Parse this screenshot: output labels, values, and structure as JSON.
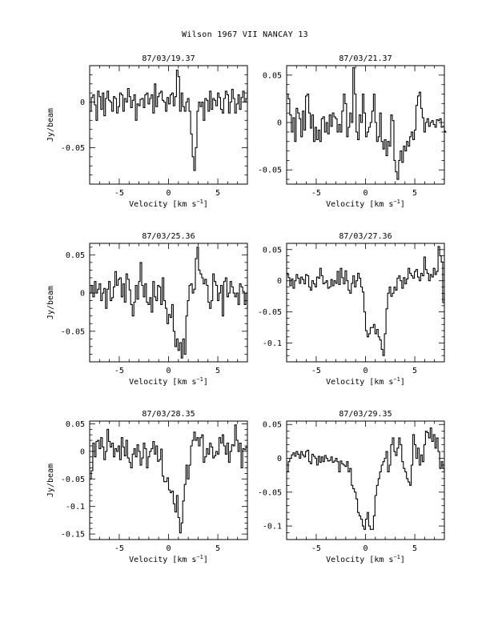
{
  "page": {
    "title": "Wilson 1967 VII    NANCAY     13"
  },
  "chart_data": [
    {
      "type": "line",
      "step": true,
      "title": "87/03/19.37",
      "xlabel": "Velocity [km s-1]",
      "ylabel": "Jy/beam",
      "xlim": [
        -8,
        8
      ],
      "ylim": [
        -0.09,
        0.04
      ],
      "xticks": [
        -5,
        0,
        5
      ],
      "yticks": [
        0,
        -0.05
      ],
      "x_start": -8,
      "x_step": 0.16,
      "values": [
        -0.01,
        0.005,
        0.008,
        -0.003,
        -0.02,
        0.012,
        0.006,
        -0.008,
        0.01,
        -0.015,
        0.004,
        0.012,
        0.002,
        0.0,
        -0.01,
        0.006,
        0.004,
        -0.012,
        -0.005,
        0.01,
        0.008,
        -0.01,
        0.004,
        0.0,
        0.015,
        0.006,
        -0.006,
        0.002,
        0.008,
        -0.02,
        -0.002,
        -0.004,
        0.003,
        0.004,
        -0.006,
        0.008,
        0.01,
        -0.002,
        0.004,
        0.008,
        -0.012,
        0.02,
        -0.005,
        0.006,
        0.01,
        0.012,
        0.002,
        0.0,
        -0.01,
        0.005,
        -0.002,
        0.008,
        0.01,
        -0.004,
        0.006,
        0.035,
        0.028,
        -0.01,
        0.01,
        -0.005,
        -0.01,
        0.0,
        0.004,
        -0.01,
        -0.035,
        -0.06,
        -0.075,
        -0.05,
        -0.01,
        0.0,
        -0.005,
        0.0,
        -0.02,
        0.004,
        0.002,
        -0.01,
        0.012,
        -0.008,
        0.004,
        0.002,
        -0.004,
        0.01,
        0.005,
        -0.008,
        -0.012,
        0.004,
        0.012,
        0.008,
        -0.012,
        0.0,
        0.014,
        0.004,
        -0.012,
        -0.002,
        0.008,
        -0.008,
        0.005,
        0.012,
        0.0,
        0.004,
        0.015
      ]
    },
    {
      "type": "line",
      "step": true,
      "title": "87/03/21.37",
      "xlabel": "Velocity [km s-1]",
      "ylabel": "",
      "xlim": [
        -8,
        8
      ],
      "ylim": [
        -0.065,
        0.06
      ],
      "xticks": [
        -5,
        0,
        5
      ],
      "yticks": [
        0.05,
        0,
        -0.05
      ],
      "x_start": -8,
      "x_step": 0.16,
      "values": [
        0.03,
        0.025,
        0.008,
        -0.01,
        0.005,
        -0.02,
        0.015,
        0.01,
        0.004,
        -0.015,
        0.012,
        -0.008,
        0.028,
        0.03,
        0.01,
        -0.006,
        0.008,
        -0.02,
        -0.005,
        -0.018,
        -0.008,
        -0.02,
        0.004,
        0.006,
        -0.01,
        0.0,
        -0.012,
        0.008,
        -0.004,
        0.01,
        0.006,
        0.004,
        -0.01,
        -0.002,
        -0.01,
        0.012,
        0.03,
        0.02,
        -0.015,
        -0.005,
        0.01,
        0.0,
        0.058,
        0.03,
        -0.01,
        -0.018,
        0.008,
        0.0,
        0.03,
        0.01,
        -0.015,
        -0.01,
        -0.005,
        0.0,
        0.012,
        0.03,
        0.0,
        -0.02,
        -0.015,
        0.01,
        -0.02,
        -0.028,
        -0.018,
        -0.035,
        -0.02,
        -0.025,
        0.008,
        0.002,
        -0.04,
        -0.052,
        -0.06,
        -0.04,
        -0.03,
        -0.042,
        -0.025,
        -0.03,
        -0.02,
        -0.025,
        -0.015,
        -0.01,
        -0.018,
        -0.008,
        0.018,
        0.028,
        0.032,
        0.015,
        0.005,
        -0.01,
        0.0,
        0.004,
        -0.004,
        0.0,
        0.002,
        -0.002,
        -0.005,
        0.003,
        0.002,
        0.004,
        -0.005,
        -0.004,
        -0.008,
        -0.01
      ]
    },
    {
      "type": "line",
      "step": true,
      "title": "87/03/25.36",
      "xlabel": "Velocity [km s-1]",
      "ylabel": "Jy/beam",
      "xlim": [
        -8,
        8
      ],
      "ylim": [
        -0.09,
        0.065
      ],
      "xticks": [
        -5,
        0,
        5
      ],
      "yticks": [
        0.05,
        0,
        -0.05
      ],
      "x_start": -8,
      "x_step": 0.16,
      "values": [
        0.0,
        0.01,
        -0.005,
        0.015,
        0.0,
        0.005,
        0.012,
        -0.01,
        0.0,
        0.006,
        -0.02,
        0.005,
        0.015,
        -0.01,
        -0.006,
        0.008,
        0.028,
        0.01,
        0.018,
        0.02,
        -0.005,
        0.012,
        -0.012,
        0.025,
        0.018,
        0.004,
        -0.015,
        -0.03,
        -0.012,
        0.01,
        -0.008,
        0.015,
        0.04,
        0.01,
        -0.005,
        0.012,
        -0.012,
        -0.015,
        -0.006,
        -0.025,
        0.015,
        -0.005,
        -0.01,
        0.01,
        0.008,
        -0.015,
        0.02,
        -0.01,
        -0.02,
        -0.04,
        -0.028,
        -0.032,
        -0.015,
        -0.05,
        -0.07,
        -0.06,
        -0.075,
        -0.065,
        -0.085,
        -0.06,
        -0.08,
        -0.03,
        -0.01,
        0.01,
        0.012,
        0.0,
        0.005,
        0.045,
        0.06,
        0.03,
        0.025,
        0.02,
        0.012,
        0.018,
        0.01,
        -0.012,
        -0.02,
        -0.01,
        0.025,
        0.015,
        0.01,
        -0.01,
        0.0,
        0.01,
        -0.03,
        0.015,
        0.02,
        -0.005,
        0.0,
        0.015,
        0.008,
        0.0,
        -0.005,
        0.0,
        -0.015,
        0.012,
        0.008,
        0.002,
        -0.015,
        0.0,
        -0.02
      ]
    },
    {
      "type": "line",
      "step": true,
      "title": "87/03/27.36",
      "xlabel": "Velocity [km s-1]",
      "ylabel": "",
      "xlim": [
        -8,
        8
      ],
      "ylim": [
        -0.13,
        0.06
      ],
      "xticks": [
        -5,
        0,
        5
      ],
      "yticks": [
        0.05,
        0,
        -0.05,
        -0.1
      ],
      "x_start": -8,
      "x_step": 0.16,
      "values": [
        0.012,
        0.005,
        -0.008,
        0.003,
        -0.012,
        0.0,
        0.01,
        0.004,
        -0.004,
        0.006,
        0.002,
        -0.005,
        0.01,
        0.008,
        -0.01,
        -0.015,
        0.0,
        -0.005,
        -0.01,
        0.006,
        0.004,
        0.02,
        0.008,
        -0.005,
        -0.003,
        0.0,
        -0.012,
        -0.01,
        0.002,
        -0.008,
        0.0,
        -0.004,
        0.015,
        -0.006,
        0.02,
        0.005,
        -0.005,
        0.016,
        0.0,
        -0.015,
        -0.02,
        -0.004,
        0.008,
        -0.01,
        0.0,
        0.012,
        0.004,
        -0.01,
        -0.018,
        -0.05,
        -0.08,
        -0.09,
        -0.085,
        -0.075,
        -0.075,
        -0.07,
        -0.085,
        -0.078,
        -0.09,
        -0.095,
        -0.11,
        -0.12,
        -0.085,
        -0.045,
        -0.02,
        -0.01,
        -0.025,
        -0.02,
        -0.01,
        -0.015,
        0.004,
        0.008,
        0.0,
        -0.012,
        0.005,
        -0.005,
        0.003,
        0.02,
        0.012,
        0.008,
        0.004,
        0.015,
        0.018,
        0.006,
        0.0,
        0.012,
        0.008,
        0.038,
        0.018,
        0.012,
        0.0,
        0.01,
        0.006,
        0.02,
        0.01,
        0.015,
        0.055,
        0.04,
        0.03,
        -0.035,
        -0.02
      ]
    },
    {
      "type": "line",
      "step": true,
      "title": "87/03/28.35",
      "xlabel": "Velocity [km s-1]",
      "ylabel": "Jy/beam",
      "xlim": [
        -8,
        8
      ],
      "ylim": [
        -0.16,
        0.055
      ],
      "xticks": [
        -5,
        0,
        5
      ],
      "yticks": [
        0.05,
        0,
        -0.05,
        -0.1,
        -0.15
      ],
      "x_start": -8,
      "x_step": 0.16,
      "values": [
        -0.05,
        -0.035,
        0.015,
        -0.01,
        0.018,
        0.02,
        0.005,
        0.025,
        0.008,
        -0.015,
        0.0,
        0.04,
        0.018,
        0.008,
        0.015,
        -0.01,
        0.005,
        0.0,
        0.01,
        -0.015,
        0.025,
        0.008,
        -0.008,
        0.02,
        -0.012,
        -0.02,
        -0.03,
        -0.005,
        0.005,
        -0.01,
        0.012,
        0.0,
        -0.025,
        -0.012,
        0.015,
        0.005,
        -0.03,
        -0.01,
        0.0,
        0.005,
        0.018,
        -0.005,
        0.01,
        -0.018,
        -0.015,
        0.004,
        -0.045,
        -0.055,
        -0.055,
        -0.048,
        -0.07,
        -0.075,
        -0.072,
        -0.095,
        -0.11,
        -0.08,
        -0.12,
        -0.148,
        -0.13,
        -0.09,
        -0.06,
        -0.025,
        -0.05,
        -0.025,
        0.01,
        0.02,
        0.035,
        0.02,
        0.025,
        0.01,
        0.025,
        0.03,
        -0.02,
        -0.01,
        0.005,
        -0.005,
        0.015,
        0.008,
        -0.012,
        -0.008,
        0.0,
        -0.005,
        0.025,
        0.015,
        0.03,
        0.01,
        -0.005,
        0.015,
        -0.02,
        0.0,
        0.012,
        0.01,
        0.048,
        0.02,
        0.0,
        0.015,
        -0.03,
        0.005,
        0.003,
        0.008,
        0.0
      ]
    },
    {
      "type": "line",
      "step": true,
      "title": "87/03/29.35",
      "xlabel": "Velocity [km s-1]",
      "ylabel": "",
      "xlim": [
        -8,
        8
      ],
      "ylim": [
        -0.12,
        0.055
      ],
      "xticks": [
        -5,
        0,
        5
      ],
      "yticks": [
        0.05,
        0,
        -0.05,
        -0.1
      ],
      "x_start": -8,
      "x_step": 0.16,
      "values": [
        -0.02,
        -0.005,
        0.0,
        0.005,
        0.008,
        0.003,
        0.01,
        0.006,
        0.0,
        0.01,
        0.005,
        0.002,
        0.01,
        0.012,
        -0.005,
        -0.008,
        0.006,
        0.003,
        0.0,
        -0.01,
        0.003,
        -0.006,
        0.002,
        -0.005,
        0.004,
        0.0,
        -0.004,
        -0.003,
        0.002,
        -0.006,
        -0.004,
        0.0,
        -0.005,
        -0.02,
        -0.004,
        -0.008,
        -0.01,
        -0.012,
        -0.005,
        -0.02,
        -0.015,
        -0.04,
        -0.045,
        -0.05,
        -0.06,
        -0.08,
        -0.085,
        -0.09,
        -0.1,
        -0.105,
        -0.09,
        -0.08,
        -0.1,
        -0.105,
        -0.105,
        -0.085,
        -0.055,
        -0.04,
        -0.03,
        -0.02,
        -0.01,
        -0.005,
        0.0,
        0.01,
        -0.02,
        -0.01,
        0.02,
        0.03,
        0.01,
        0.004,
        0.015,
        0.03,
        0.02,
        -0.005,
        -0.015,
        -0.02,
        -0.03,
        -0.035,
        -0.04,
        -0.01,
        0.035,
        0.02,
        0.0,
        0.015,
        -0.01,
        0.005,
        -0.005,
        0.02,
        0.04,
        0.038,
        0.03,
        0.045,
        0.025,
        0.035,
        0.015,
        0.03,
        0.01,
        -0.015,
        -0.005,
        -0.015,
        -0.02
      ]
    }
  ]
}
